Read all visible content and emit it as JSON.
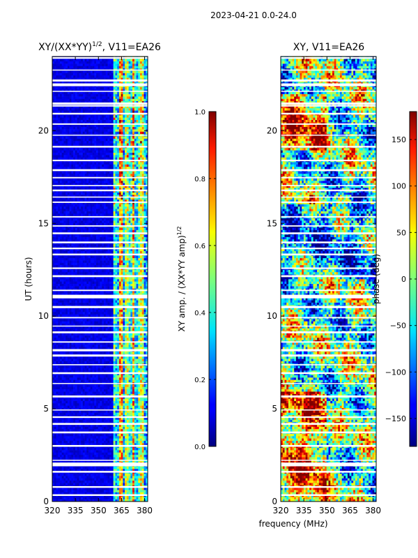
{
  "suptitle": "2023-04-21 0.0-24.0",
  "xlabel": "frequency (MHz)",
  "chart_data": [
    {
      "type": "heatmap",
      "title_main": "XY/(XX*YY)",
      "title_sup": "1/2",
      "title_rest": ", V11=EA26",
      "ylabel": "UT (hours)",
      "x_range": [
        320,
        382
      ],
      "y_range": [
        0,
        24
      ],
      "x_ticks": [
        320,
        335,
        350,
        365,
        380
      ],
      "y_ticks": [
        0,
        5,
        10,
        15,
        20
      ],
      "colorbar": {
        "label_main": "XY amp. / (XX*YY amp)",
        "label_sup": "1/2",
        "range": [
          0.0,
          1.0
        ],
        "ticks": [
          "0.0",
          "0.2",
          "0.4",
          "0.6",
          "0.8",
          "1.0"
        ],
        "tick_values": [
          0.0,
          0.2,
          0.4,
          0.6,
          0.8,
          1.0
        ]
      }
    },
    {
      "type": "heatmap",
      "title_main": "XY, V11=EA26",
      "ylabel": "",
      "x_range": [
        320,
        382
      ],
      "y_range": [
        0,
        24
      ],
      "x_ticks": [
        320,
        335,
        350,
        365,
        380
      ],
      "y_ticks": [
        0,
        5,
        10,
        15,
        20
      ],
      "colorbar": {
        "label_main": "phase (deg)",
        "range": [
          -180,
          180
        ],
        "ticks": [
          "−150",
          "−100",
          "−50",
          "0",
          "50",
          "100",
          "150"
        ],
        "tick_values": [
          -150,
          -100,
          -50,
          0,
          50,
          100,
          150
        ]
      }
    }
  ]
}
